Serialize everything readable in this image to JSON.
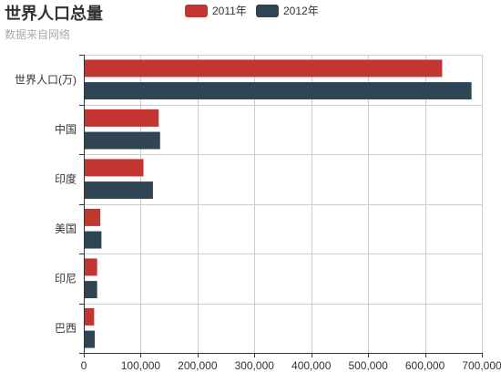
{
  "chart_data": {
    "type": "bar",
    "orientation": "horizontal",
    "title": "世界人口总量",
    "subtitle": "数据来自网络",
    "categories": [
      "巴西",
      "印尼",
      "美国",
      "印度",
      "中国",
      "世界人口(万)"
    ],
    "series": [
      {
        "name": "2011年",
        "color": "#c23531",
        "values": [
          18203,
          23489,
          29034,
          104970,
          131744,
          630230
        ]
      },
      {
        "name": "2012年",
        "color": "#2f4554",
        "values": [
          19325,
          23438,
          31000,
          121594,
          134141,
          681807
        ]
      }
    ],
    "xlim": [
      0,
      700000
    ],
    "xticks": [
      "0",
      "100,000",
      "200,000",
      "300,000",
      "400,000",
      "500,000",
      "600,000",
      "700,000"
    ],
    "grid": true,
    "legend_position": "top-center"
  }
}
